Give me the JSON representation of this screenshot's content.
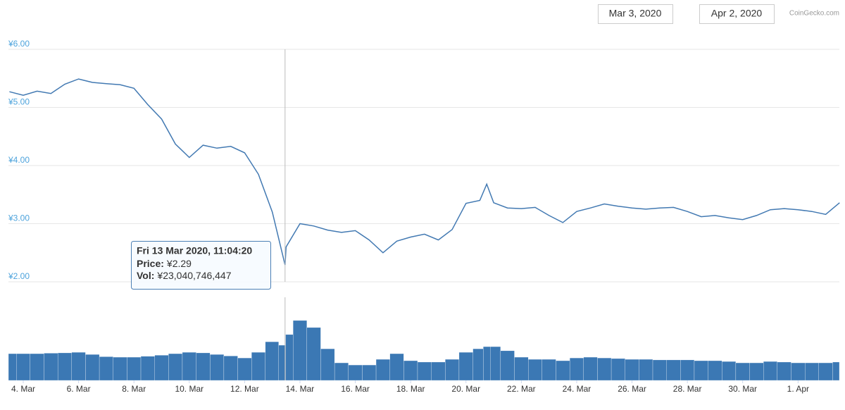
{
  "chart_data": {
    "type": "line",
    "credit": "CoinGecko.com",
    "range_start": "Mar 3, 2020",
    "range_end": "Apr 2, 2020",
    "x": [
      "2020-03-03T12:00",
      "2020-03-04T00:00",
      "2020-03-04T12:00",
      "2020-03-05T00:00",
      "2020-03-05T12:00",
      "2020-03-06T00:00",
      "2020-03-06T12:00",
      "2020-03-07T00:00",
      "2020-03-07T12:00",
      "2020-03-08T00:00",
      "2020-03-08T12:00",
      "2020-03-09T00:00",
      "2020-03-09T12:00",
      "2020-03-10T00:00",
      "2020-03-10T12:00",
      "2020-03-11T00:00",
      "2020-03-11T12:00",
      "2020-03-12T00:00",
      "2020-03-12T12:00",
      "2020-03-13T00:00",
      "2020-03-13T11:04:20",
      "2020-03-13T12:00",
      "2020-03-14T00:00",
      "2020-03-14T12:00",
      "2020-03-15T00:00",
      "2020-03-15T12:00",
      "2020-03-16T00:00",
      "2020-03-16T12:00",
      "2020-03-17T00:00",
      "2020-03-17T12:00",
      "2020-03-18T00:00",
      "2020-03-18T12:00",
      "2020-03-19T00:00",
      "2020-03-19T12:00",
      "2020-03-20T00:00",
      "2020-03-20T12:00",
      "2020-03-20T18:00",
      "2020-03-21T00:00",
      "2020-03-21T12:00",
      "2020-03-22T00:00",
      "2020-03-22T12:00",
      "2020-03-23T00:00",
      "2020-03-23T12:00",
      "2020-03-24T00:00",
      "2020-03-24T12:00",
      "2020-03-25T00:00",
      "2020-03-25T12:00",
      "2020-03-26T00:00",
      "2020-03-26T12:00",
      "2020-03-27T00:00",
      "2020-03-27T12:00",
      "2020-03-28T00:00",
      "2020-03-28T12:00",
      "2020-03-29T00:00",
      "2020-03-29T12:00",
      "2020-03-30T00:00",
      "2020-03-30T12:00",
      "2020-03-31T00:00",
      "2020-03-31T12:00",
      "2020-04-01T00:00",
      "2020-04-01T12:00",
      "2020-04-02T00:00",
      "2020-04-02T12:00"
    ],
    "series": [
      {
        "name": "Price",
        "color": "#4279b2",
        "values": [
          5.27,
          5.21,
          5.28,
          5.24,
          5.4,
          5.49,
          5.43,
          5.41,
          5.39,
          5.33,
          5.05,
          4.8,
          4.37,
          4.14,
          4.35,
          4.3,
          4.33,
          4.22,
          3.85,
          3.2,
          2.29,
          2.6,
          3.0,
          2.96,
          2.89,
          2.85,
          2.88,
          2.72,
          2.5,
          2.7,
          2.77,
          2.82,
          2.72,
          2.9,
          3.35,
          3.4,
          3.68,
          3.36,
          3.27,
          3.26,
          3.28,
          3.14,
          3.02,
          3.21,
          3.27,
          3.34,
          3.3,
          3.27,
          3.25,
          3.27,
          3.28,
          3.21,
          3.12,
          3.14,
          3.1,
          3.07,
          3.14,
          3.24,
          3.26,
          3.24,
          3.21,
          3.16,
          3.36
        ]
      },
      {
        "name": "Vol",
        "color": "#3b78b4",
        "axis": "y2",
        "values": [
          17500000000,
          17500000000,
          17500000000,
          17800000000,
          18000000000,
          18400000000,
          17000000000,
          15500000000,
          15200000000,
          15200000000,
          15800000000,
          16500000000,
          17500000000,
          18400000000,
          18000000000,
          17000000000,
          16000000000,
          14700000000,
          18400000000,
          25300000000,
          23040746447,
          30000000000,
          39200000000,
          34600000000,
          20700000000,
          11500000000,
          10100000000,
          10100000000,
          13800000000,
          17500000000,
          12900000000,
          12000000000,
          12000000000,
          13800000000,
          18400000000,
          20700000000,
          22100000000,
          22100000000,
          19400000000,
          15200000000,
          13800000000,
          13800000000,
          12900000000,
          14700000000,
          15200000000,
          14700000000,
          14300000000,
          13800000000,
          13800000000,
          13400000000,
          13400000000,
          13400000000,
          12900000000,
          12900000000,
          12400000000,
          11500000000,
          11500000000,
          12400000000,
          12000000000,
          11500000000,
          11500000000,
          11500000000,
          12000000000
        ]
      }
    ],
    "xlim": [
      "2020-03-03T11:10",
      "2020-04-02T11:50"
    ],
    "xticks": [
      {
        "value": "2020-03-04T00:00",
        "label": "4. Mar"
      },
      {
        "value": "2020-03-06T00:00",
        "label": "6. Mar"
      },
      {
        "value": "2020-03-08T00:00",
        "label": "8. Mar"
      },
      {
        "value": "2020-03-10T00:00",
        "label": "10. Mar"
      },
      {
        "value": "2020-03-12T00:00",
        "label": "12. Mar"
      },
      {
        "value": "2020-03-14T00:00",
        "label": "14. Mar"
      },
      {
        "value": "2020-03-16T00:00",
        "label": "16. Mar"
      },
      {
        "value": "2020-03-18T00:00",
        "label": "18. Mar"
      },
      {
        "value": "2020-03-20T00:00",
        "label": "20. Mar"
      },
      {
        "value": "2020-03-22T00:00",
        "label": "22. Mar"
      },
      {
        "value": "2020-03-24T00:00",
        "label": "24. Mar"
      },
      {
        "value": "2020-03-26T00:00",
        "label": "26. Mar"
      },
      {
        "value": "2020-03-28T00:00",
        "label": "28. Mar"
      },
      {
        "value": "2020-03-30T00:00",
        "label": "30. Mar"
      },
      {
        "value": "2020-04-01T00:00",
        "label": "1. Apr"
      }
    ],
    "ylim": [
      2,
      6
    ],
    "yticks": [
      {
        "value": 6,
        "label": "¥6.00"
      },
      {
        "value": 5,
        "label": "¥5.00"
      },
      {
        "value": 4,
        "label": "¥4.00"
      },
      {
        "value": 3,
        "label": "¥3.00"
      },
      {
        "value": 2,
        "label": "¥2.00"
      }
    ],
    "y2lim": [
      0,
      53000000000
    ],
    "grid": true,
    "tooltip": {
      "x": "2020-03-13T11:04:20",
      "title": "Fri 13 Mar 2020, 11:04:20",
      "items": [
        {
          "label": "Price:",
          "value": "¥2.29"
        },
        {
          "label": "Vol:",
          "value": "¥23,040,746,447"
        }
      ]
    }
  }
}
